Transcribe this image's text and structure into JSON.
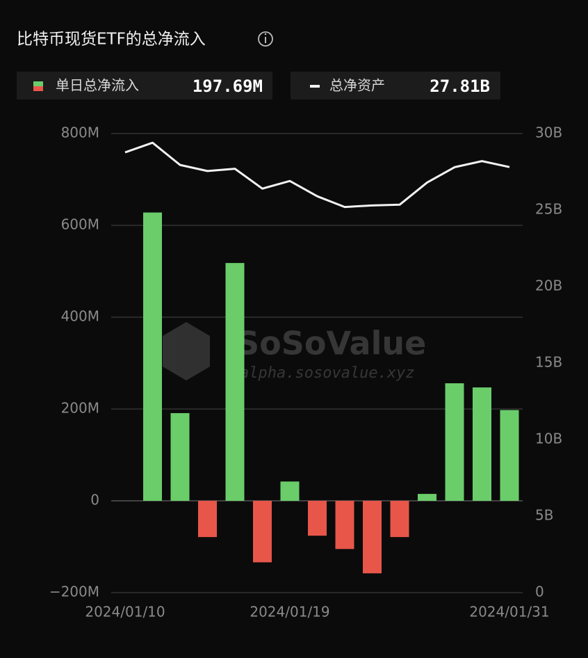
{
  "chart_data": {
    "type": "bar",
    "title": "比特币现货ETF的总净流入",
    "categories": [
      "2024/01/10",
      null,
      null,
      null,
      null,
      null,
      "2024/01/19",
      null,
      null,
      null,
      null,
      null,
      null,
      null,
      "2024/01/31"
    ],
    "series": [
      {
        "name": "单日总净流入",
        "type": "bar",
        "summary": "197.69M",
        "color": "#6acd6a",
        "negative_color": "#e8564a",
        "values": [
          null,
          628,
          191,
          -79,
          518,
          -134,
          42,
          -76,
          -105,
          -158,
          -79,
          15,
          256,
          247,
          197.69
        ]
      },
      {
        "name": "总净资产",
        "type": "line",
        "axis": "y2",
        "summary": "27.81B",
        "color": "#f2f2f2",
        "values": [
          28.77,
          29.4,
          27.95,
          27.55,
          27.7,
          26.4,
          26.9,
          25.9,
          25.2,
          25.3,
          25.35,
          26.8,
          27.8,
          28.2,
          27.81
        ]
      }
    ],
    "ylim": [
      -200,
      800
    ],
    "yticks": [
      {
        "value": -200,
        "label": "−200M"
      },
      0,
      {
        "value": 200,
        "label": "200M"
      },
      {
        "value": 400,
        "label": "400M"
      },
      {
        "value": 600,
        "label": "600M"
      },
      {
        "value": 800,
        "label": "800M"
      }
    ],
    "y2lim": [
      0,
      30
    ],
    "y2ticks": [
      0,
      {
        "value": 5,
        "label": "5B"
      },
      {
        "value": 10,
        "label": "10B"
      },
      {
        "value": 15,
        "label": "15B"
      },
      {
        "value": 20,
        "label": "20B"
      },
      {
        "value": 25,
        "label": "25B"
      },
      {
        "value": 30,
        "label": "30B"
      }
    ],
    "grid": true,
    "watermark": {
      "brand": "SoSoValue",
      "url": "alpha.sosovalue.xyz"
    }
  }
}
